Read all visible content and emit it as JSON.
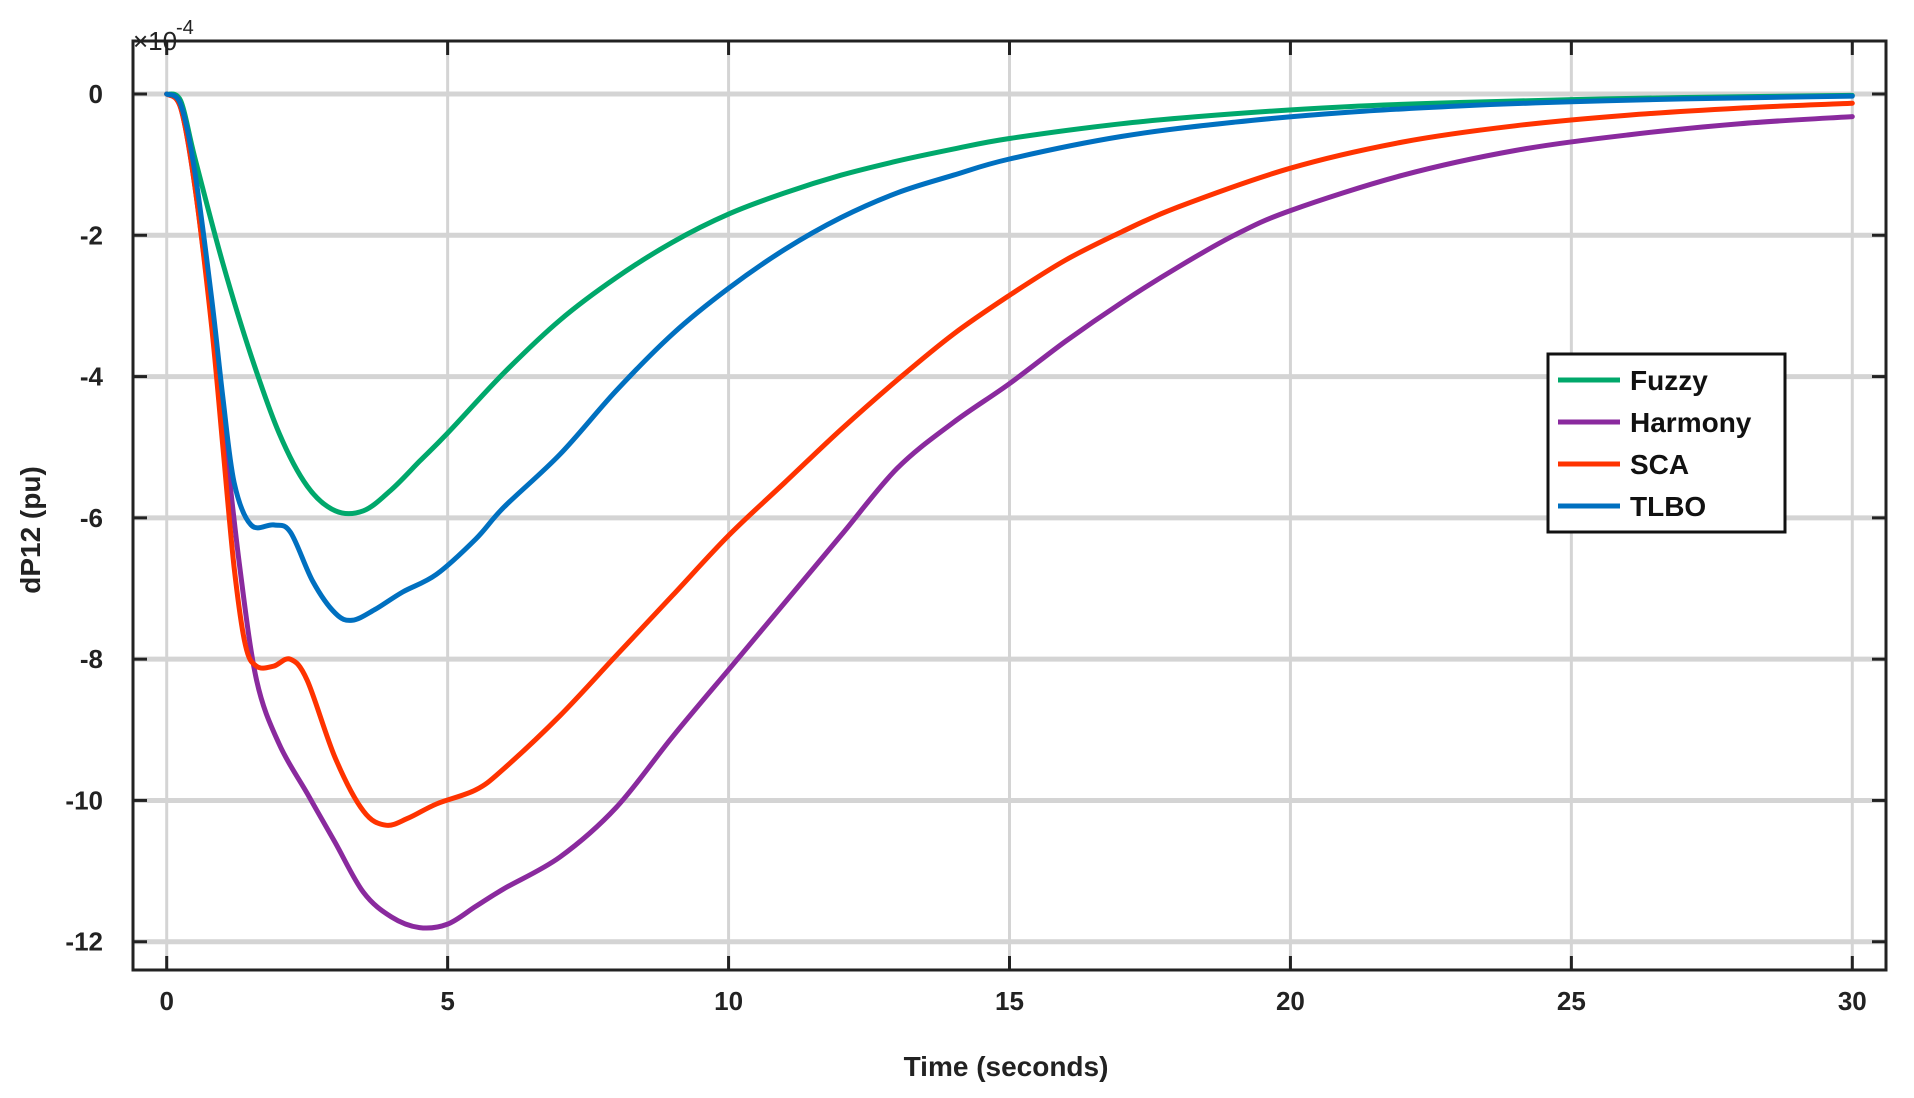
{
  "chart_data": {
    "type": "line",
    "title": "",
    "xlabel": "Time (seconds)",
    "ylabel": "dP12 (pu)",
    "y_exponent_label": "×10",
    "y_exponent_power": "-4",
    "xlim": [
      -0.6,
      30.6
    ],
    "ylim": [
      -12.4,
      0.75
    ],
    "xticks": [
      0,
      5,
      10,
      15,
      20,
      25,
      30
    ],
    "yticks": [
      0,
      -2,
      -4,
      -6,
      -8,
      -10,
      -12
    ],
    "grid": true,
    "legend_position": "right",
    "series": [
      {
        "name": "Fuzzy",
        "color": "#00a86b",
        "points": [
          [
            0,
            0
          ],
          [
            0.25,
            -0.1
          ],
          [
            0.5,
            -0.9
          ],
          [
            1,
            -2.4
          ],
          [
            1.5,
            -3.7
          ],
          [
            2,
            -4.8
          ],
          [
            2.5,
            -5.55
          ],
          [
            3,
            -5.9
          ],
          [
            3.5,
            -5.9
          ],
          [
            4,
            -5.6
          ],
          [
            4.5,
            -5.2
          ],
          [
            5,
            -4.8
          ],
          [
            6,
            -3.95
          ],
          [
            7,
            -3.2
          ],
          [
            8,
            -2.6
          ],
          [
            9,
            -2.1
          ],
          [
            10,
            -1.7
          ],
          [
            11,
            -1.4
          ],
          [
            12,
            -1.15
          ],
          [
            13,
            -0.95
          ],
          [
            14,
            -0.78
          ],
          [
            15,
            -0.63
          ],
          [
            17,
            -0.42
          ],
          [
            19,
            -0.28
          ],
          [
            21,
            -0.18
          ],
          [
            23,
            -0.12
          ],
          [
            25,
            -0.08
          ],
          [
            27,
            -0.05
          ],
          [
            30,
            -0.02
          ]
        ]
      },
      {
        "name": "Harmony",
        "color": "#8a2a9e",
        "points": [
          [
            0,
            0
          ],
          [
            0.25,
            -0.2
          ],
          [
            0.5,
            -1.3
          ],
          [
            0.8,
            -3.2
          ],
          [
            1,
            -4.6
          ],
          [
            1.3,
            -6.7
          ],
          [
            1.6,
            -8.3
          ],
          [
            2,
            -9.2
          ],
          [
            2.5,
            -9.9
          ],
          [
            3,
            -10.6
          ],
          [
            3.5,
            -11.3
          ],
          [
            4,
            -11.65
          ],
          [
            4.5,
            -11.8
          ],
          [
            5,
            -11.75
          ],
          [
            5.5,
            -11.5
          ],
          [
            6,
            -11.25
          ],
          [
            7,
            -10.8
          ],
          [
            8,
            -10.1
          ],
          [
            9,
            -9.1
          ],
          [
            10,
            -8.15
          ],
          [
            11,
            -7.2
          ],
          [
            12,
            -6.25
          ],
          [
            13,
            -5.3
          ],
          [
            14,
            -4.65
          ],
          [
            15,
            -4.1
          ],
          [
            16,
            -3.5
          ],
          [
            17,
            -2.95
          ],
          [
            18,
            -2.45
          ],
          [
            19,
            -2.0
          ],
          [
            20,
            -1.65
          ],
          [
            22,
            -1.15
          ],
          [
            24,
            -0.8
          ],
          [
            26,
            -0.58
          ],
          [
            28,
            -0.42
          ],
          [
            30,
            -0.32
          ]
        ]
      },
      {
        "name": "SCA",
        "color": "#ff3300",
        "points": [
          [
            0,
            0
          ],
          [
            0.25,
            -0.2
          ],
          [
            0.5,
            -1.3
          ],
          [
            0.8,
            -3.3
          ],
          [
            1,
            -5.0
          ],
          [
            1.2,
            -6.7
          ],
          [
            1.4,
            -7.8
          ],
          [
            1.6,
            -8.1
          ],
          [
            1.9,
            -8.1
          ],
          [
            2.2,
            -8.0
          ],
          [
            2.5,
            -8.3
          ],
          [
            3,
            -9.4
          ],
          [
            3.5,
            -10.15
          ],
          [
            3.9,
            -10.35
          ],
          [
            4.3,
            -10.25
          ],
          [
            4.8,
            -10.05
          ],
          [
            5.5,
            -9.85
          ],
          [
            6,
            -9.55
          ],
          [
            7,
            -8.8
          ],
          [
            8,
            -7.95
          ],
          [
            9,
            -7.1
          ],
          [
            10,
            -6.25
          ],
          [
            11,
            -5.5
          ],
          [
            12,
            -4.75
          ],
          [
            13,
            -4.05
          ],
          [
            14,
            -3.4
          ],
          [
            15,
            -2.85
          ],
          [
            16,
            -2.35
          ],
          [
            17,
            -1.95
          ],
          [
            18,
            -1.6
          ],
          [
            20,
            -1.05
          ],
          [
            22,
            -0.68
          ],
          [
            24,
            -0.45
          ],
          [
            26,
            -0.3
          ],
          [
            28,
            -0.2
          ],
          [
            30,
            -0.13
          ]
        ]
      },
      {
        "name": "TLBO",
        "color": "#0070c0",
        "points": [
          [
            0,
            0
          ],
          [
            0.25,
            -0.15
          ],
          [
            0.5,
            -1.1
          ],
          [
            0.8,
            -2.9
          ],
          [
            1,
            -4.3
          ],
          [
            1.2,
            -5.5
          ],
          [
            1.5,
            -6.1
          ],
          [
            1.9,
            -6.1
          ],
          [
            2.2,
            -6.2
          ],
          [
            2.6,
            -6.9
          ],
          [
            3,
            -7.35
          ],
          [
            3.3,
            -7.45
          ],
          [
            3.7,
            -7.3
          ],
          [
            4.2,
            -7.05
          ],
          [
            4.8,
            -6.8
          ],
          [
            5.5,
            -6.3
          ],
          [
            6,
            -5.85
          ],
          [
            7,
            -5.1
          ],
          [
            8,
            -4.2
          ],
          [
            9,
            -3.4
          ],
          [
            10,
            -2.75
          ],
          [
            11,
            -2.2
          ],
          [
            12,
            -1.75
          ],
          [
            13,
            -1.4
          ],
          [
            14,
            -1.15
          ],
          [
            15,
            -0.92
          ],
          [
            17,
            -0.6
          ],
          [
            19,
            -0.4
          ],
          [
            21,
            -0.26
          ],
          [
            23,
            -0.17
          ],
          [
            25,
            -0.11
          ],
          [
            27,
            -0.07
          ],
          [
            30,
            -0.03
          ]
        ]
      }
    ]
  }
}
